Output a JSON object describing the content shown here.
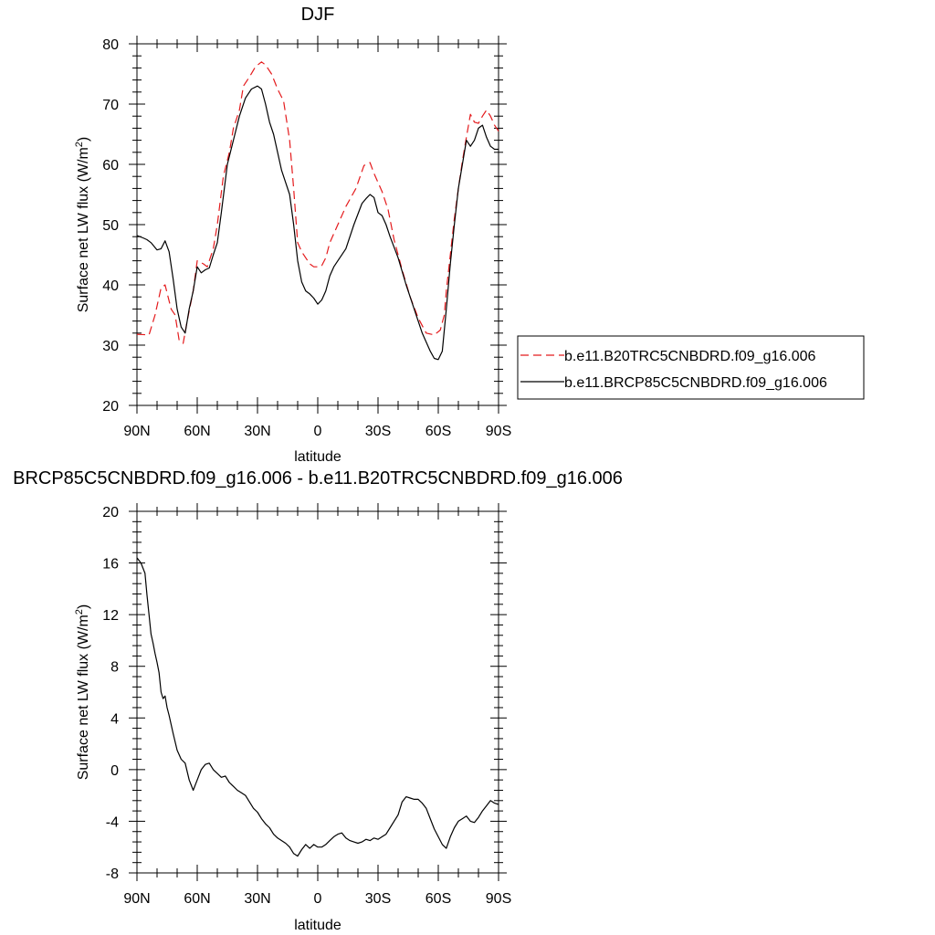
{
  "chart_data": [
    {
      "type": "line",
      "title": "DJF",
      "xlabel": "latitude",
      "ylabel": "Surface net LW flux (W/m",
      "ylabel_sup": "2",
      "ylabel_end": ")",
      "xlim": [
        -90,
        90
      ],
      "ylim": [
        20,
        80
      ],
      "x_ticks": [
        -90,
        -60,
        -30,
        0,
        30,
        60,
        90
      ],
      "x_tick_labels": [
        "90N",
        "60N",
        "30N",
        "0",
        "30S",
        "60S",
        "90S"
      ],
      "y_ticks": [
        20,
        30,
        40,
        50,
        60,
        70,
        80
      ],
      "y_tick_labels": [
        "20",
        "30",
        "40",
        "50",
        "60",
        "70",
        "80"
      ],
      "legend_placement": "right",
      "series": [
        {
          "name": "b.e11.B20TRC5CNBDRD.f09_g16.006",
          "color": "#e41a1c",
          "style": "dashed",
          "x": [
            -90,
            -84,
            -81,
            -78,
            -76,
            -73,
            -71,
            -69,
            -67,
            -65,
            -62,
            -60,
            -57,
            -55,
            -52,
            -50,
            -47,
            -44,
            -42,
            -39,
            -37,
            -34,
            -31,
            -28,
            -26,
            -23,
            -20,
            -17,
            -14,
            -12,
            -10,
            -8,
            -6,
            -4,
            -2,
            0,
            2,
            4,
            6,
            8,
            10,
            14,
            19,
            23,
            26,
            28,
            30,
            32,
            35,
            38,
            42,
            46,
            50,
            54,
            58,
            61,
            63,
            64,
            66,
            68,
            70,
            72,
            74,
            76,
            78,
            80,
            82,
            84,
            86,
            88,
            90
          ],
          "y": [
            31.8,
            31.7,
            35,
            39.5,
            40,
            36,
            35,
            30.8,
            30.3,
            34,
            39,
            44,
            43.5,
            43,
            46,
            50,
            58,
            62,
            66,
            69,
            73,
            74.5,
            76.2,
            77,
            76.5,
            75,
            72.5,
            70.5,
            64,
            56,
            47,
            45.5,
            44.5,
            43.5,
            43,
            43,
            43.2,
            44.5,
            47,
            48.5,
            50,
            53,
            56,
            59.8,
            60.3,
            58.5,
            57,
            55.5,
            52.5,
            47.5,
            42.5,
            38,
            34.5,
            32,
            31.7,
            32.5,
            35,
            39,
            45,
            51,
            56,
            60.5,
            64.5,
            68.3,
            67,
            66.8,
            68,
            69,
            68,
            66.5,
            65.5
          ]
        },
        {
          "name": "b.e11.BRCP85C5CNBDRD.f09_g16.006",
          "color": "#000000",
          "style": "solid",
          "x": [
            -90,
            -87,
            -85,
            -83,
            -80,
            -78,
            -76,
            -74,
            -72,
            -70,
            -68,
            -66,
            -64,
            -62,
            -60,
            -58,
            -56,
            -54,
            -52,
            -50,
            -48,
            -45,
            -42,
            -39,
            -36,
            -33,
            -30,
            -28,
            -26,
            -24,
            -22,
            -20,
            -18,
            -16,
            -14,
            -12,
            -10,
            -8,
            -6,
            -4,
            -2,
            0,
            2,
            4,
            6,
            8,
            10,
            14,
            18,
            22,
            24,
            26,
            28,
            30,
            32,
            34,
            36,
            40,
            44,
            48,
            52,
            56,
            58,
            60,
            62,
            64,
            66,
            68,
            70,
            72,
            74,
            76,
            78,
            80,
            82,
            84,
            86,
            88,
            90
          ],
          "y": [
            48.2,
            47.8,
            47.5,
            47,
            45.8,
            46,
            47.3,
            45.5,
            41,
            36,
            33,
            32,
            36,
            39,
            43,
            42,
            42.5,
            42.8,
            45,
            47,
            52,
            60,
            64,
            68,
            71,
            72.5,
            73,
            72.5,
            70,
            67,
            65,
            62,
            59,
            57,
            55,
            50,
            44,
            40.5,
            39,
            38.5,
            37.8,
            36.8,
            37.5,
            39,
            41.5,
            43,
            44,
            46,
            50,
            53.5,
            54.3,
            55,
            54.5,
            52,
            51.5,
            50,
            48,
            44.5,
            40,
            36,
            32,
            29,
            27.8,
            27.6,
            29,
            36,
            43.5,
            50,
            56,
            60,
            64,
            63,
            64,
            66,
            66.5,
            64.5,
            63,
            62.5,
            62.5
          ]
        }
      ]
    },
    {
      "type": "line",
      "title": "BRCP85C5CNBDRD.f09_g16.006 - b.e11.B20TRC5CNBDRD.f09_g16.006",
      "xlabel": "latitude",
      "ylabel": "Surface net LW flux (W/m",
      "ylabel_sup": "2",
      "ylabel_end": ")",
      "xlim": [
        -90,
        90
      ],
      "ylim": [
        -8,
        20
      ],
      "x_ticks": [
        -90,
        -60,
        -30,
        0,
        30,
        60,
        90
      ],
      "x_tick_labels": [
        "90N",
        "60N",
        "30N",
        "0",
        "30S",
        "60S",
        "90S"
      ],
      "y_ticks": [
        -8,
        -4,
        0,
        4,
        8,
        12,
        16,
        20
      ],
      "y_tick_labels": [
        "-8",
        "-4",
        "0",
        "4",
        "8",
        "12",
        "16",
        "20"
      ],
      "series": [
        {
          "color": "#000000",
          "style": "solid",
          "x": [
            -90,
            -88,
            -86,
            -85,
            -84,
            -83,
            -82,
            -81,
            -80,
            -79,
            -78,
            -77,
            -76,
            -75,
            -74,
            -72,
            -70,
            -68,
            -66,
            -64,
            -62,
            -60,
            -58,
            -56,
            -54,
            -52,
            -50,
            -48,
            -46,
            -44,
            -42,
            -40,
            -38,
            -36,
            -34,
            -32,
            -30,
            -28,
            -26,
            -24,
            -22,
            -20,
            -18,
            -16,
            -14,
            -12,
            -10,
            -8,
            -6,
            -4,
            -2,
            0,
            2,
            4,
            6,
            8,
            10,
            12,
            14,
            16,
            18,
            20,
            22,
            24,
            26,
            28,
            30,
            32,
            34,
            36,
            38,
            40,
            42,
            44,
            46,
            48,
            50,
            52,
            54,
            56,
            58,
            60,
            62,
            64,
            66,
            68,
            70,
            72,
            74,
            76,
            78,
            80,
            82,
            84,
            86,
            88,
            90
          ],
          "y": [
            16.4,
            16,
            15.2,
            13.5,
            12,
            10.5,
            9.8,
            9,
            8.3,
            7.5,
            6,
            5.5,
            5.7,
            4.8,
            4.2,
            2.8,
            1.5,
            0.8,
            0.5,
            -0.8,
            -1.6,
            -0.8,
            0,
            0.4,
            0.5,
            0,
            -0.3,
            -0.6,
            -0.5,
            -1,
            -1.3,
            -1.6,
            -1.8,
            -2,
            -2.5,
            -3,
            -3.3,
            -3.8,
            -4.2,
            -4.5,
            -5,
            -5.3,
            -5.5,
            -5.7,
            -6,
            -6.5,
            -6.7,
            -6.2,
            -5.8,
            -6.1,
            -5.8,
            -6,
            -6,
            -5.8,
            -5.5,
            -5.2,
            -5,
            -4.9,
            -5.3,
            -5.5,
            -5.6,
            -5.7,
            -5.6,
            -5.4,
            -5.5,
            -5.3,
            -5.4,
            -5.2,
            -5,
            -4.5,
            -4,
            -3.5,
            -2.5,
            -2.1,
            -2.2,
            -2.3,
            -2.3,
            -2.6,
            -3,
            -3.8,
            -4.6,
            -5.2,
            -5.8,
            -6.1,
            -5.2,
            -4.5,
            -4,
            -3.8,
            -3.6,
            -4,
            -4.1,
            -3.7,
            -3.2,
            -2.8,
            -2.4,
            -2.6,
            -2.7
          ]
        }
      ]
    }
  ]
}
